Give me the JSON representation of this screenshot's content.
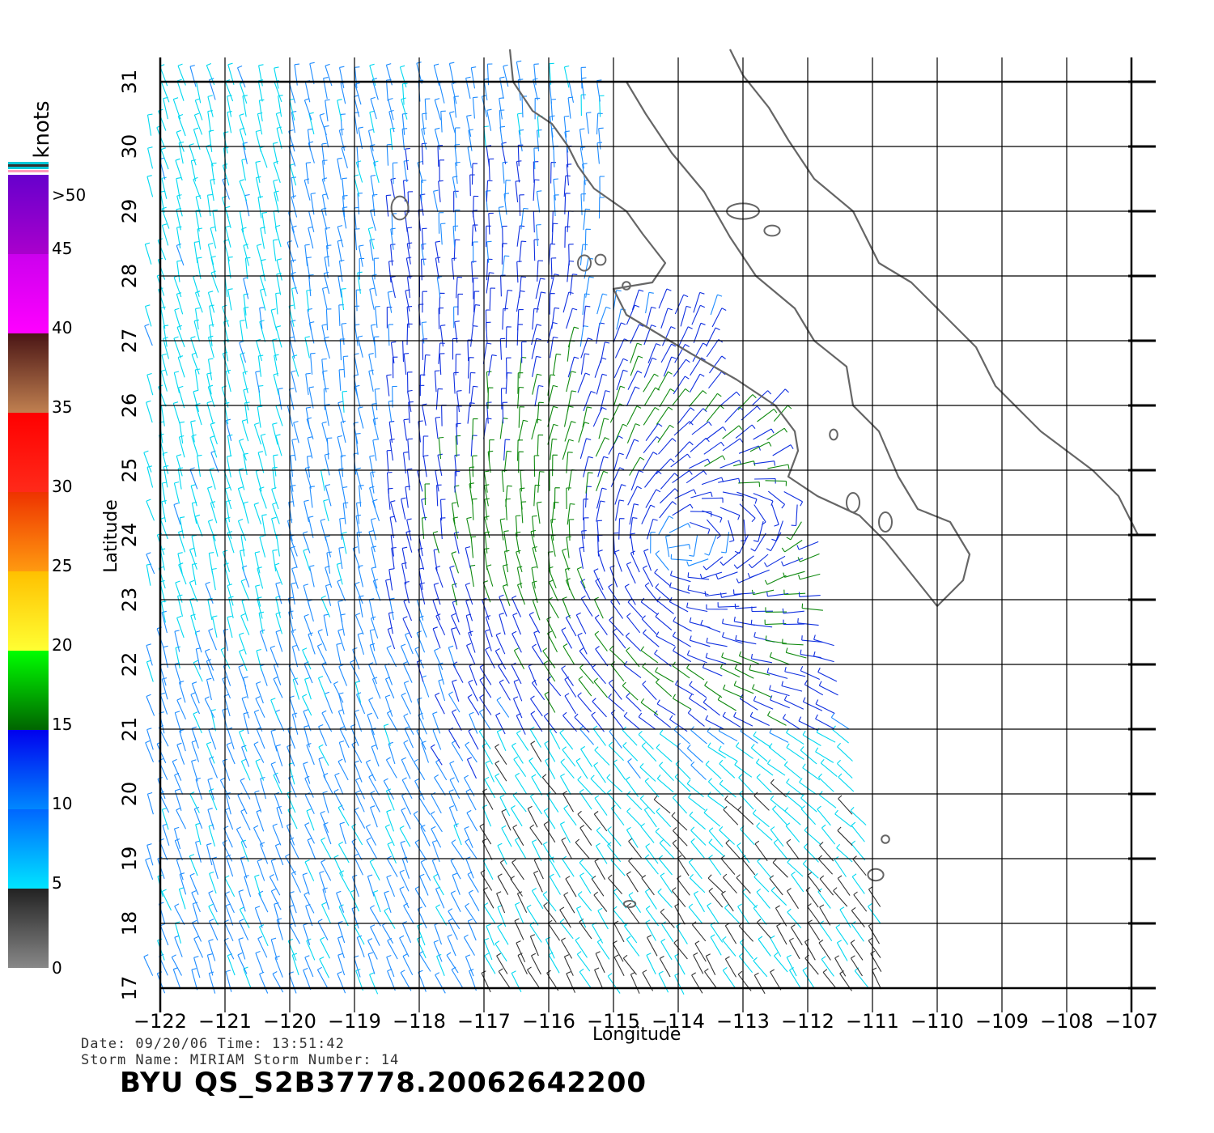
{
  "colorbar": {
    "title": "knots",
    "labels": [
      "0",
      "5",
      "10",
      "15",
      "20",
      "25",
      "30",
      "35",
      "40",
      "45",
      ">50"
    ],
    "bands": [
      {
        "from": 0,
        "to": 5,
        "colors": [
          "#888888",
          "#222222"
        ]
      },
      {
        "from": 5,
        "to": 10,
        "colors": [
          "#00e5ff",
          "#0066ff"
        ]
      },
      {
        "from": 10,
        "to": 15,
        "colors": [
          "#0088ff",
          "#0000ee"
        ]
      },
      {
        "from": 15,
        "to": 20,
        "colors": [
          "#006400",
          "#00ff00"
        ]
      },
      {
        "from": 20,
        "to": 25,
        "colors": [
          "#ffff33",
          "#ffc000"
        ]
      },
      {
        "from": 25,
        "to": 30,
        "colors": [
          "#ff9a10",
          "#ee3300"
        ]
      },
      {
        "from": 30,
        "to": 35,
        "colors": [
          "#ff2a1a",
          "#ff0000"
        ]
      },
      {
        "from": 35,
        "to": 40,
        "colors": [
          "#c08050",
          "#4a1515"
        ]
      },
      {
        "from": 40,
        "to": 45,
        "colors": [
          "#ff00ff",
          "#cc00ee"
        ]
      },
      {
        "from": 45,
        "to": 50,
        "colors": [
          "#aa00cc",
          "#6600cc"
        ]
      }
    ]
  },
  "axes": {
    "xlabel": "Longitude",
    "ylabel": "Latitude",
    "lon_range": [
      -122,
      -107
    ],
    "lat_range": [
      17,
      31
    ],
    "lon_ticks": [
      -122,
      -121,
      -120,
      -119,
      -118,
      -117,
      -116,
      -115,
      -114,
      -113,
      -112,
      -111,
      -110,
      -109,
      -108,
      -107
    ],
    "lat_ticks": [
      17,
      18,
      19,
      20,
      21,
      22,
      23,
      24,
      25,
      26,
      27,
      28,
      29,
      30,
      31
    ],
    "grid": true
  },
  "storm": {
    "center_lon": -114.0,
    "center_lat": 23.8
  },
  "info": {
    "date_line": "Date: 09/20/06   Time: 13:51:42",
    "storm_line": "Storm Name: MIRIAM   Storm Number: 14",
    "product": "BYU QS_S2B37778.20062642200"
  },
  "colors": {
    "coast": "#666666",
    "grid": "#000000",
    "slow": "#333333",
    "cyan": "#00d8f0",
    "light_blue": "#1e8cff",
    "blue": "#1030e0",
    "green": "#108a10"
  }
}
